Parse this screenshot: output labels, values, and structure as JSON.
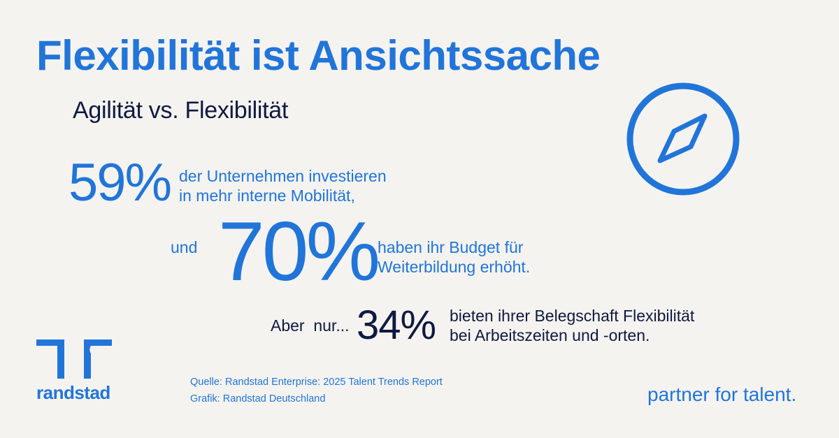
{
  "title": "Flexibilität ist Ansichtssache",
  "subtitle": "Agilität vs. Flexibilität",
  "stats": [
    {
      "percent": "59%",
      "line1": "der Unternehmen investieren",
      "line2": "in mehr interne Mobilität,"
    },
    {
      "prefix": "und",
      "percent": "70%",
      "line1": "haben ihr Budget für",
      "line2": "Weiterbildung erhöht."
    },
    {
      "prefix": "Aber  nur...",
      "percent": "34%",
      "line1": "bieten ihrer Belegschaft Flexibilität",
      "line2": "bei Arbeitszeiten und -orten."
    }
  ],
  "source": {
    "line1": "Quelle: Randstad Enterprise: 2025 Talent Trends Report",
    "line2": "Grafik: Randstad Deutschland"
  },
  "logo": {
    "text": "randstad",
    "icon": "randstad-logo-icon"
  },
  "tagline": "partner for talent.",
  "decor_icon": "compass-icon",
  "colors": {
    "blue": "#2175d9",
    "navy": "#0f1941",
    "background": "#f5f3ef"
  }
}
